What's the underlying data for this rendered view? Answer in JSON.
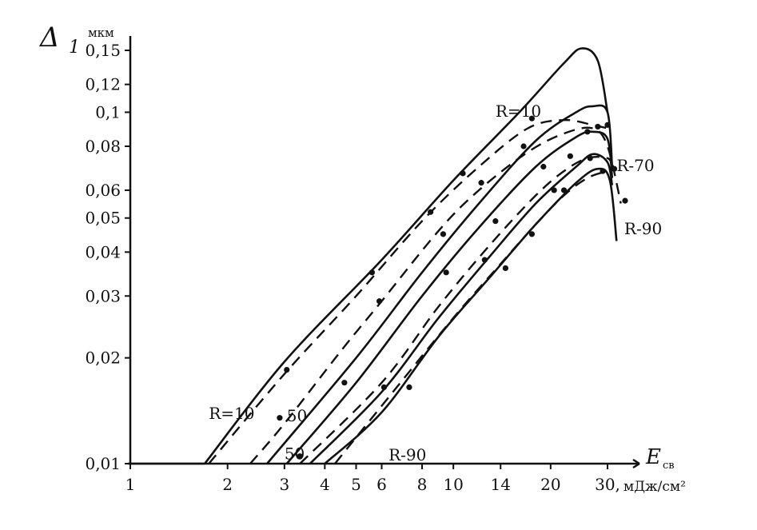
{
  "chart_data": {
    "type": "line",
    "title": "",
    "xlabel": "E",
    "xlabel_sub": "св",
    "xunit": "мДж/см²",
    "ylabel": "Δ",
    "ylabel_sub": "1",
    "yunit": "мкм",
    "xscale": "log",
    "yscale": "log",
    "xlim": [
      1,
      35
    ],
    "ylim": [
      0.01,
      0.16
    ],
    "x_ticks": [
      1,
      2,
      3,
      4,
      5,
      6,
      8,
      10,
      14,
      20,
      30
    ],
    "x_tick_labels": [
      "1",
      "2",
      "3",
      "4",
      "5",
      "6",
      "8",
      "10",
      "14",
      "20",
      "30,"
    ],
    "y_ticks": [
      0.01,
      0.02,
      0.03,
      0.04,
      0.05,
      0.06,
      0.08,
      0.1,
      0.12,
      0.15
    ],
    "y_tick_labels": [
      "0,01",
      "0,02",
      "0,03",
      "0,04",
      "0,05",
      "0,06",
      "0,08",
      "0,1",
      "0,12",
      "0,15"
    ],
    "grid": false,
    "legend": "none",
    "baseline": {
      "x": [
        1,
        1.7
      ],
      "y": [
        0.01,
        0.01
      ]
    },
    "series": [
      {
        "style": "solid",
        "x": [
          1.7,
          3,
          6,
          10,
          16,
          22,
          25,
          28,
          30
        ],
        "y": [
          0.01,
          0.0195,
          0.038,
          0.064,
          0.1,
          0.138,
          0.152,
          0.14,
          0.1
        ]
      },
      {
        "style": "dashed",
        "x": [
          1.75,
          3,
          5,
          8,
          12,
          17,
          22,
          27,
          30
        ],
        "y": [
          0.01,
          0.018,
          0.03,
          0.049,
          0.07,
          0.09,
          0.095,
          0.092,
          0.09
        ]
      },
      {
        "style": "dashed",
        "x": [
          2.35,
          3,
          4.5,
          6,
          9,
          12,
          17,
          22,
          27,
          30,
          33
        ],
        "y": [
          0.01,
          0.013,
          0.021,
          0.029,
          0.046,
          0.06,
          0.077,
          0.087,
          0.09,
          0.08,
          0.055
        ]
      },
      {
        "style": "solid",
        "x": [
          2.65,
          5,
          8,
          12,
          18,
          24,
          27,
          30,
          31
        ],
        "y": [
          0.01,
          0.02,
          0.035,
          0.055,
          0.083,
          0.1,
          0.104,
          0.1,
          0.07
        ]
      },
      {
        "style": "solid",
        "x": [
          3.05,
          5,
          8,
          12,
          18,
          24,
          27,
          30,
          31
        ],
        "y": [
          0.01,
          0.017,
          0.03,
          0.047,
          0.07,
          0.085,
          0.088,
          0.084,
          0.065
        ]
      },
      {
        "style": "dashed",
        "x": [
          3.35,
          6,
          9,
          13,
          18,
          22,
          26,
          30,
          31
        ],
        "y": [
          0.01,
          0.017,
          0.028,
          0.042,
          0.058,
          0.068,
          0.074,
          0.074,
          0.07
        ]
      },
      {
        "style": "solid",
        "x": [
          3.6,
          6,
          9,
          13,
          18,
          24,
          27,
          30,
          31
        ],
        "y": [
          0.01,
          0.016,
          0.026,
          0.039,
          0.055,
          0.07,
          0.076,
          0.072,
          0.062
        ]
      },
      {
        "style": "solid",
        "x": [
          4.0,
          6,
          9,
          13,
          18,
          24,
          28,
          30.5,
          32
        ],
        "y": [
          0.01,
          0.014,
          0.023,
          0.034,
          0.048,
          0.063,
          0.069,
          0.064,
          0.043
        ]
      },
      {
        "style": "dashed",
        "x": [
          4.3,
          6.5,
          10,
          14,
          18,
          22,
          26,
          30
        ],
        "y": [
          0.01,
          0.016,
          0.026,
          0.037,
          0.048,
          0.058,
          0.065,
          0.068
        ]
      }
    ],
    "points": [
      {
        "x": 3.05,
        "y": 0.0185
      },
      {
        "x": 5.9,
        "y": 0.029
      },
      {
        "x": 5.6,
        "y": 0.035
      },
      {
        "x": 8.5,
        "y": 0.052
      },
      {
        "x": 10.7,
        "y": 0.067
      },
      {
        "x": 17.5,
        "y": 0.096
      },
      {
        "x": 28,
        "y": 0.091
      },
      {
        "x": 30,
        "y": 0.092
      },
      {
        "x": 2.9,
        "y": 0.0135
      },
      {
        "x": 4.6,
        "y": 0.017
      },
      {
        "x": 9.3,
        "y": 0.045
      },
      {
        "x": 12.2,
        "y": 0.063
      },
      {
        "x": 16.5,
        "y": 0.08
      },
      {
        "x": 26,
        "y": 0.088
      },
      {
        "x": 31.5,
        "y": 0.069
      },
      {
        "x": 34,
        "y": 0.056
      },
      {
        "x": 3.35,
        "y": 0.0105
      },
      {
        "x": 6.1,
        "y": 0.0165
      },
      {
        "x": 9.5,
        "y": 0.035
      },
      {
        "x": 13.5,
        "y": 0.049
      },
      {
        "x": 19,
        "y": 0.07
      },
      {
        "x": 23,
        "y": 0.075
      },
      {
        "x": 26.5,
        "y": 0.074
      },
      {
        "x": 7.3,
        "y": 0.0165
      },
      {
        "x": 12.5,
        "y": 0.038
      },
      {
        "x": 14.5,
        "y": 0.036
      },
      {
        "x": 17.5,
        "y": 0.045
      },
      {
        "x": 20.5,
        "y": 0.06
      },
      {
        "x": 22,
        "y": 0.06
      },
      {
        "x": 29,
        "y": 0.068
      }
    ],
    "annotations": [
      {
        "text": "R=10",
        "x": 1.75,
        "y": 0.0134
      },
      {
        "text": "R=10",
        "x": 13.5,
        "y": 0.097
      },
      {
        "text": "50",
        "x": 3.05,
        "y": 0.0132
      },
      {
        "text": "50",
        "x": 3.0,
        "y": 0.0103
      },
      {
        "text": "R-90",
        "x": 6.3,
        "y": 0.0102
      },
      {
        "text": "R-70",
        "x": 32,
        "y": 0.068
      },
      {
        "text": "R-90",
        "x": 33.8,
        "y": 0.045
      }
    ]
  }
}
